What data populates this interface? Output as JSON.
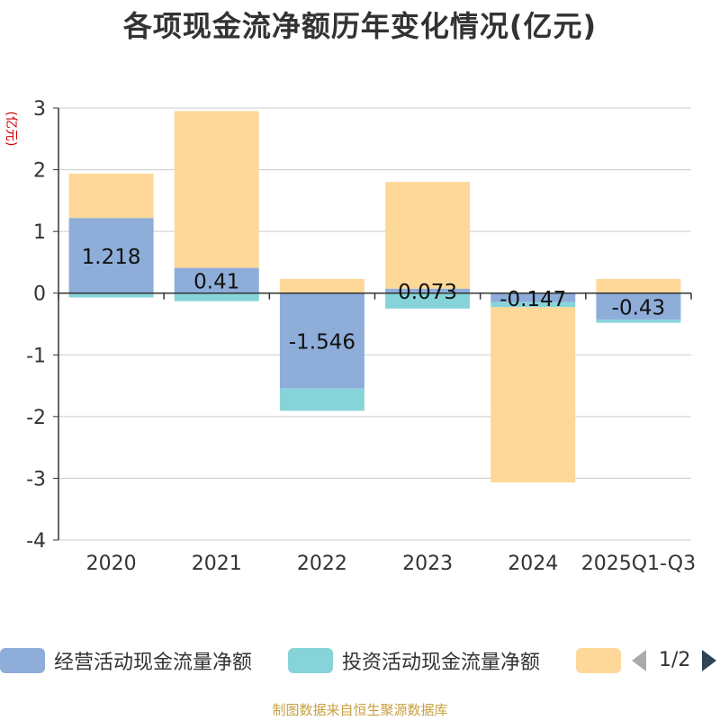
{
  "chart_data": {
    "type": "bar",
    "stacked": true,
    "title": "各项现金流净额历年变化情况(亿元)",
    "ylabel": "(亿元)",
    "xlabel": "",
    "ylim": [
      -4,
      3
    ],
    "yticks": [
      3,
      2,
      1,
      0,
      -1,
      -2,
      -3,
      -4
    ],
    "categories": [
      "2020",
      "2021",
      "2022",
      "2023",
      "2024",
      "2025Q1-Q3"
    ],
    "series": [
      {
        "name": "经营活动现金流量净额",
        "color": "#8eadd9",
        "values": [
          1.218,
          0.41,
          -1.546,
          0.073,
          -0.147,
          -0.43
        ],
        "labels": [
          "1.218",
          "0.41",
          "-1.546",
          "0.073",
          "-0.147",
          "-0.43"
        ]
      },
      {
        "name": "投资活动现金流量净额",
        "color": "#86d4d9",
        "values": [
          -0.07,
          -0.13,
          -0.36,
          -0.25,
          -0.08,
          -0.05
        ]
      },
      {
        "name": "",
        "color": "#fdd898",
        "values": [
          0.72,
          2.54,
          0.23,
          1.73,
          -2.84,
          0.23
        ]
      }
    ],
    "legend_page": "1/2"
  },
  "source": "制图数据来自恒生聚源数据库"
}
